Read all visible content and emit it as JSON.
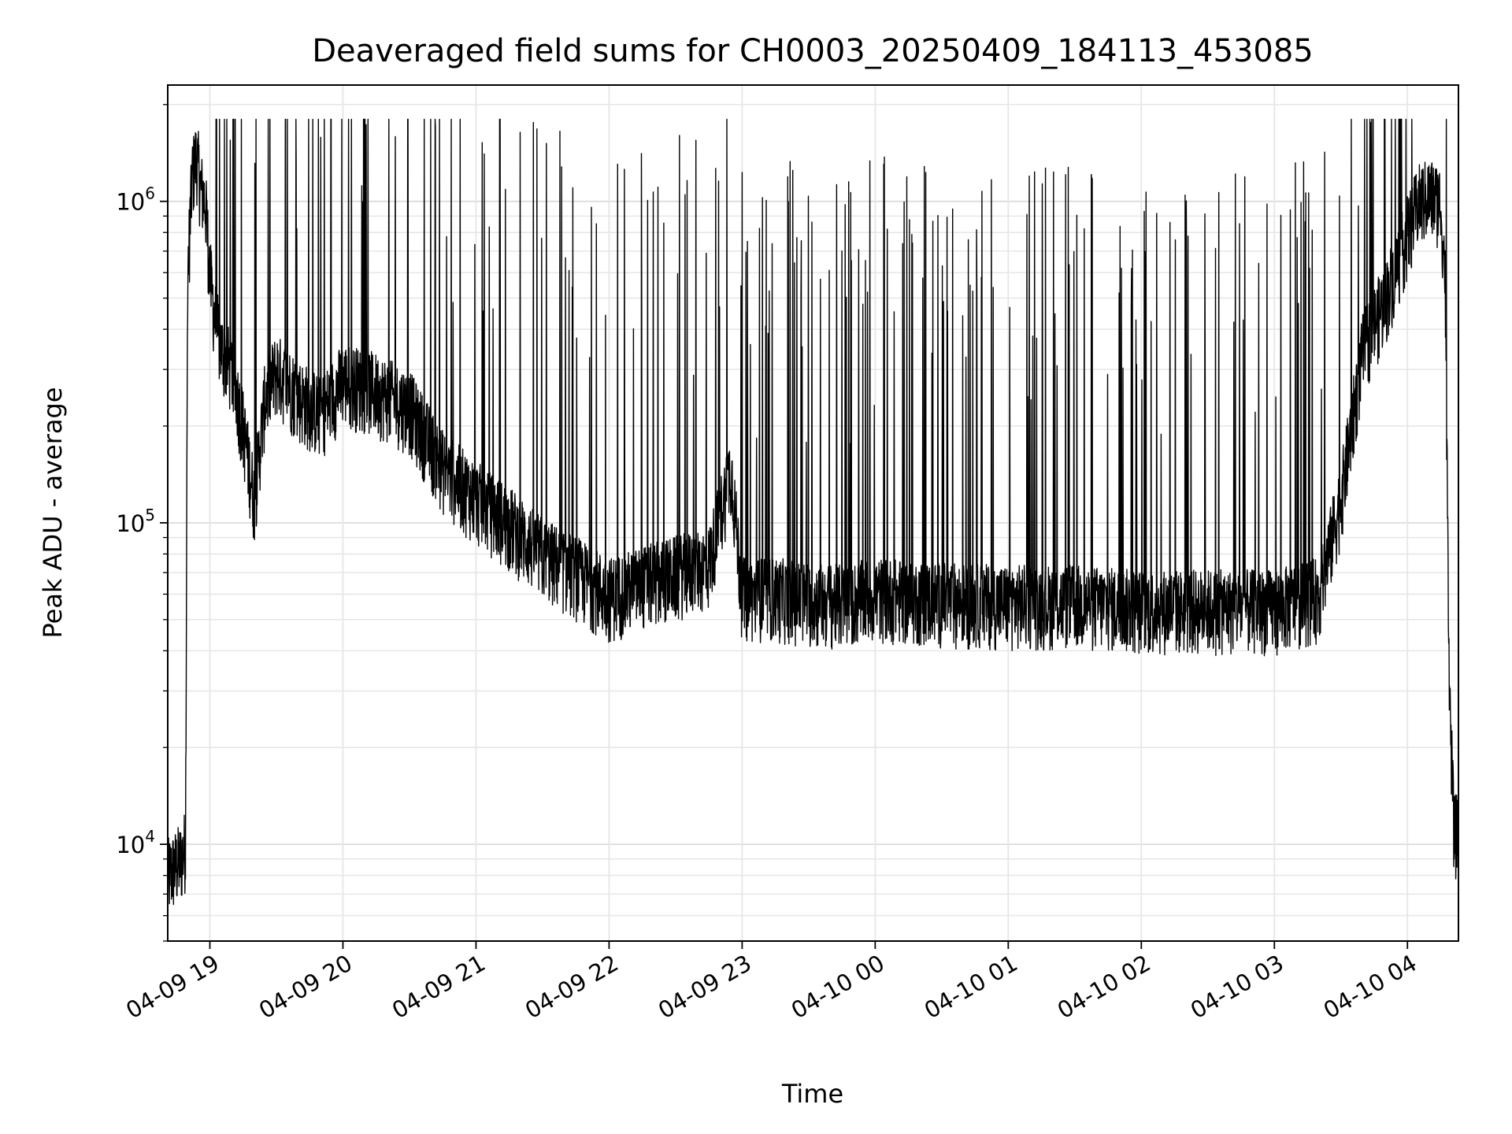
{
  "chart_data": {
    "type": "line",
    "title": "Deaveraged field sums for CH0003_20250409_184113_453085",
    "xlabel": "Time",
    "ylabel": "Peak ADU - average",
    "yscale": "log",
    "ylim": [
      5000,
      2300000
    ],
    "xlim": [
      "2025-04-09 18:41",
      "2025-04-10 04:23"
    ],
    "grid": true,
    "line_color": "#000000",
    "x_ticks": [
      {
        "value": "2025-04-09 19:00",
        "label": "04-09 19"
      },
      {
        "value": "2025-04-09 20:00",
        "label": "04-09 20"
      },
      {
        "value": "2025-04-09 21:00",
        "label": "04-09 21"
      },
      {
        "value": "2025-04-09 22:00",
        "label": "04-09 22"
      },
      {
        "value": "2025-04-09 23:00",
        "label": "04-09 23"
      },
      {
        "value": "2025-04-10 00:00",
        "label": "04-10 00"
      },
      {
        "value": "2025-04-10 01:00",
        "label": "04-10 01"
      },
      {
        "value": "2025-04-10 02:00",
        "label": "04-10 02"
      },
      {
        "value": "2025-04-10 03:00",
        "label": "04-10 03"
      },
      {
        "value": "2025-04-10 04:00",
        "label": "04-10 04"
      }
    ],
    "y_ticks": [
      {
        "value": 10000,
        "base": "10",
        "exp": "4"
      },
      {
        "value": 100000,
        "base": "10",
        "exp": "5"
      },
      {
        "value": 1000000,
        "base": "10",
        "exp": "6"
      }
    ],
    "series": [
      {
        "x": [
          "2025-04-09 18:41",
          "2025-04-09 18:44",
          "2025-04-09 18:47",
          "2025-04-09 18:49",
          "2025-04-09 18:50",
          "2025-04-09 18:52",
          "2025-04-09 18:54",
          "2025-04-09 18:56",
          "2025-04-09 18:58",
          "2025-04-09 19:00",
          "2025-04-09 19:02",
          "2025-04-09 19:05",
          "2025-04-09 19:10",
          "2025-04-09 19:15",
          "2025-04-09 19:20",
          "2025-04-09 19:25",
          "2025-04-09 19:30",
          "2025-04-09 19:40",
          "2025-04-09 19:50",
          "2025-04-09 20:00",
          "2025-04-09 20:15",
          "2025-04-09 20:30",
          "2025-04-09 20:45",
          "2025-04-09 21:00",
          "2025-04-09 21:15",
          "2025-04-09 21:30",
          "2025-04-09 21:45",
          "2025-04-09 22:00",
          "2025-04-09 22:15",
          "2025-04-09 22:30",
          "2025-04-09 22:45",
          "2025-04-09 22:55",
          "2025-04-09 23:00",
          "2025-04-09 23:15",
          "2025-04-09 23:30",
          "2025-04-09 23:45",
          "2025-04-10 00:00",
          "2025-04-10 00:30",
          "2025-04-10 01:00",
          "2025-04-10 01:30",
          "2025-04-10 02:00",
          "2025-04-10 02:30",
          "2025-04-10 03:00",
          "2025-04-10 03:20",
          "2025-04-10 03:30",
          "2025-04-10 03:40",
          "2025-04-10 03:50",
          "2025-04-10 04:00",
          "2025-04-10 04:05",
          "2025-04-10 04:10",
          "2025-04-10 04:15",
          "2025-04-10 04:17",
          "2025-04-10 04:19",
          "2025-04-10 04:21",
          "2025-04-10 04:23"
        ],
        "y": [
          8000,
          8500,
          9000,
          10000,
          600000,
          1200000,
          1400000,
          1100000,
          1000000,
          600000,
          450000,
          350000,
          300000,
          200000,
          120000,
          250000,
          300000,
          250000,
          220000,
          280000,
          260000,
          230000,
          150000,
          120000,
          100000,
          80000,
          70000,
          60000,
          65000,
          70000,
          75000,
          150000,
          60000,
          60000,
          58000,
          57000,
          60000,
          58000,
          57000,
          57000,
          55000,
          55000,
          55000,
          60000,
          120000,
          350000,
          500000,
          800000,
          1000000,
          1050000,
          1000000,
          600000,
          30000,
          11000,
          11000
        ]
      }
    ]
  }
}
